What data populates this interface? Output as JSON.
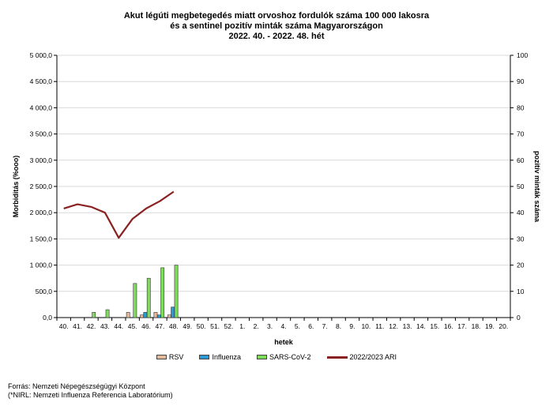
{
  "title_lines": [
    "Akut légúti megbetegedés miatt orvoshoz fordulók száma 100 000 lakosra",
    "és a sentinel pozitív minták száma Magyarországon",
    "2022. 40. - 2022. 48. hét"
  ],
  "source_lines": [
    "Forrás: Nemzeti Népegészségügyi Központ",
    "(*NIRL: Nemzeti Influenza Referencia Laboratórium)"
  ],
  "chart_data": {
    "type": "bar",
    "title": "Akut légúti megbetegedés miatt orvoshoz fordulók száma 100 000 lakosra és a sentinel pozitív minták száma Magyarországon 2022. 40. - 2022. 48. hét",
    "xlabel": "hetek",
    "ylabel_left": "Morbiditás (%ooo)",
    "ylabel_right": "pozitív minták száma",
    "ylim_left": [
      0,
      5000
    ],
    "ylim_right": [
      0,
      100
    ],
    "left_ticks": [
      "0,0",
      "500,0",
      "1 000,0",
      "1 500,0",
      "2 000,0",
      "2 500,0",
      "3 000,0",
      "3 500,0",
      "4 000,0",
      "4 500,0",
      "5 000,0"
    ],
    "right_ticks": [
      "0",
      "10",
      "20",
      "30",
      "40",
      "50",
      "60",
      "70",
      "80",
      "90",
      "100"
    ],
    "grid": true,
    "legend_position": "bottom",
    "categories": [
      "40.",
      "41.",
      "42.",
      "43.",
      "44.",
      "45.",
      "46.",
      "47.",
      "48.",
      "49.",
      "50.",
      "51.",
      "52.",
      "1.",
      "2.",
      "3.",
      "4.",
      "5.",
      "6.",
      "7.",
      "8.",
      "9.",
      "10.",
      "11.",
      "12.",
      "13.",
      "14.",
      "15.",
      "16.",
      "17.",
      "18.",
      "19.",
      "20."
    ],
    "series": [
      {
        "name": "RSV",
        "kind": "bar",
        "axis": "right",
        "color": "#e6b99a",
        "values": [
          0,
          0,
          0,
          0,
          0,
          2,
          1,
          2,
          1,
          null,
          null,
          null,
          null,
          null,
          null,
          null,
          null,
          null,
          null,
          null,
          null,
          null,
          null,
          null,
          null,
          null,
          null,
          null,
          null,
          null,
          null,
          null,
          null
        ]
      },
      {
        "name": "Influenza",
        "kind": "bar",
        "axis": "right",
        "color": "#2a9ad6",
        "values": [
          0,
          0,
          0,
          0,
          0,
          0,
          2,
          1,
          4,
          null,
          null,
          null,
          null,
          null,
          null,
          null,
          null,
          null,
          null,
          null,
          null,
          null,
          null,
          null,
          null,
          null,
          null,
          null,
          null,
          null,
          null,
          null,
          null
        ]
      },
      {
        "name": "SARS-CoV-2",
        "kind": "bar",
        "axis": "right",
        "color": "#7ddc5a",
        "values": [
          0,
          0,
          2,
          3,
          0,
          13,
          15,
          19,
          20,
          null,
          null,
          null,
          null,
          null,
          null,
          null,
          null,
          null,
          null,
          null,
          null,
          null,
          null,
          null,
          null,
          null,
          null,
          null,
          null,
          null,
          null,
          null,
          null
        ]
      },
      {
        "name": "2022/2023 ARI",
        "kind": "line",
        "axis": "left",
        "color": "#8b2222",
        "values": [
          2080,
          2160,
          2110,
          2000,
          1520,
          1880,
          2080,
          2220,
          2400,
          null,
          null,
          null,
          null,
          null,
          null,
          null,
          null,
          null,
          null,
          null,
          null,
          null,
          null,
          null,
          null,
          null,
          null,
          null,
          null,
          null,
          null,
          null,
          null
        ]
      }
    ]
  }
}
